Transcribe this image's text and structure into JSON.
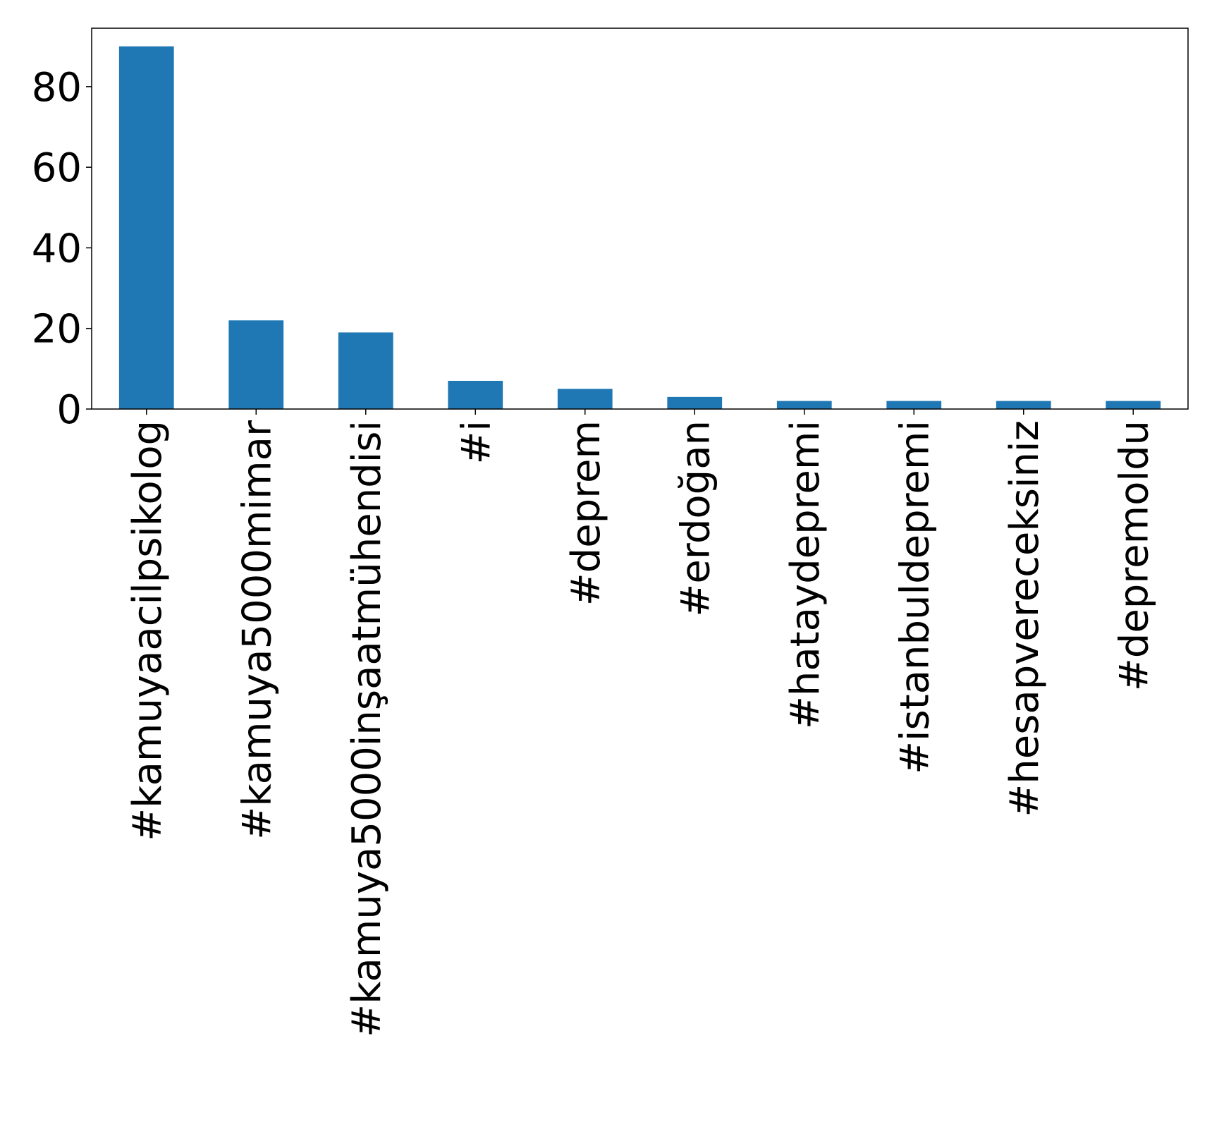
{
  "chart_data": {
    "type": "bar",
    "categories": [
      "#kamuyaacilpsikolog",
      "#kamuya5000mimar",
      "#kamuya5000inşaatmühendisi",
      "#i",
      "#deprem",
      "#erdoğan",
      "#hataydepremi",
      "#istanbuldepremi",
      "#hesapvereceksiniz",
      "#depremoldu"
    ],
    "values": [
      90,
      22,
      19,
      7,
      5,
      3,
      2,
      2,
      2,
      2
    ],
    "title": "",
    "xlabel": "",
    "ylabel": "",
    "ylim": [
      0,
      94.5
    ],
    "yticks": [
      0,
      20,
      40,
      60,
      80
    ],
    "bar_color": "#1f77b4",
    "grid": false,
    "legend": "none"
  }
}
